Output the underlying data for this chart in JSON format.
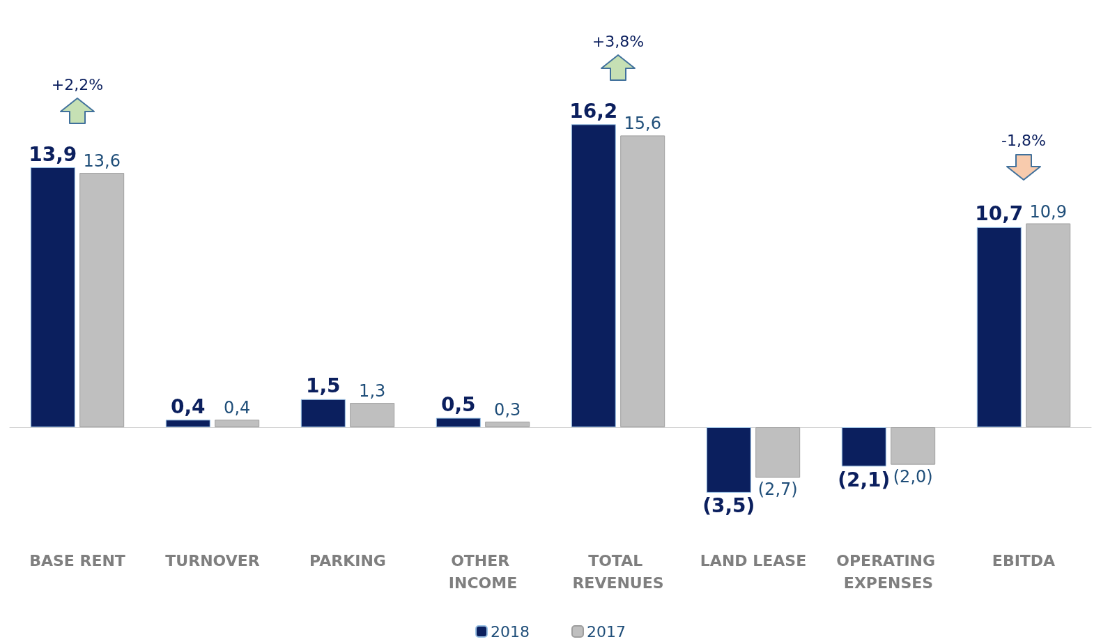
{
  "chart_data": {
    "type": "bar",
    "categories": [
      "BASE RENT",
      "TURNOVER",
      "PARKING",
      "OTHER INCOME",
      "TOTAL REVENUES",
      "LAND LEASE",
      "OPERATING EXPENSES",
      "EBITDA"
    ],
    "series": [
      {
        "name": "2018",
        "color": "#0b1f5e",
        "values": [
          13.9,
          0.4,
          1.5,
          0.5,
          16.2,
          -3.5,
          -2.1,
          10.7
        ],
        "value_labels": [
          "13,9",
          "0,4",
          "1,5",
          "0,5",
          "16,2",
          "(3,5)",
          "(2,1)",
          "10,7"
        ]
      },
      {
        "name": "2017",
        "color": "#bfbfbf",
        "values": [
          13.6,
          0.4,
          1.3,
          0.3,
          15.6,
          -2.7,
          -2.0,
          10.9
        ],
        "value_labels": [
          "13,6",
          "0,4",
          "1,3",
          "0,3",
          "15,6",
          "(2,7)",
          "(2,0)",
          "10,9"
        ]
      }
    ],
    "annotations": [
      "+2,2%",
      "+3,8%",
      "-1,8%"
    ],
    "legend": "bottom",
    "grid": false
  }
}
